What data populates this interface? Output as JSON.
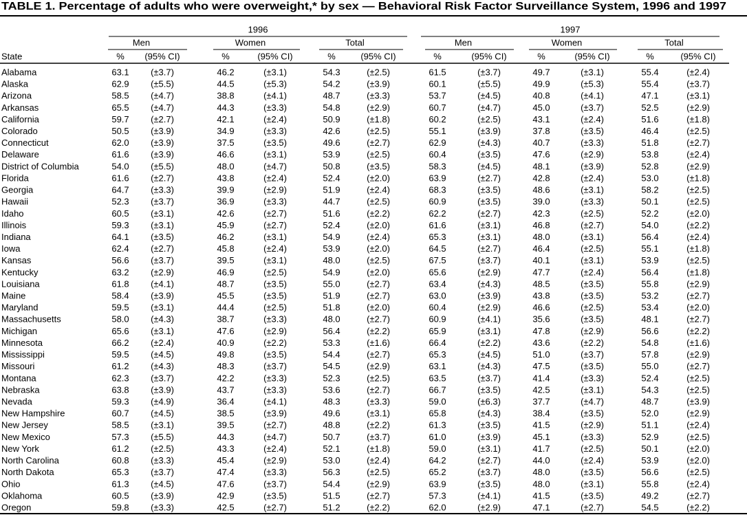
{
  "title": "TABLE 1. Percentage of adults who were overweight,* by sex — Behavioral Risk Factor Surveillance System, 1996 and 1997",
  "years": [
    "1996",
    "1997"
  ],
  "groups": [
    "Men",
    "Women",
    "Total"
  ],
  "columns": {
    "state": "State",
    "pct": "%",
    "ci": "(95% CI)"
  },
  "rows": [
    [
      "Alabama",
      "63.1",
      "(±3.7)",
      "46.2",
      "(±3.1)",
      "54.3",
      "(±2.5)",
      "61.5",
      "(±3.7)",
      "49.7",
      "(±3.1)",
      "55.4",
      "(±2.4)"
    ],
    [
      "Alaska",
      "62.9",
      "(±5.5)",
      "44.5",
      "(±5.3)",
      "54.2",
      "(±3.9)",
      "60.1",
      "(±5.5)",
      "49.9",
      "(±5.3)",
      "55.4",
      "(±3.7)"
    ],
    [
      "Arizona",
      "58.5",
      "(±4.7)",
      "38.8",
      "(±4.1)",
      "48.7",
      "(±3.3)",
      "53.7",
      "(±4.5)",
      "40.8",
      "(±4.1)",
      "47.1",
      "(±3.1)"
    ],
    [
      "Arkansas",
      "65.5",
      "(±4.7)",
      "44.3",
      "(±3.3)",
      "54.8",
      "(±2.9)",
      "60.7",
      "(±4.7)",
      "45.0",
      "(±3.7)",
      "52.5",
      "(±2.9)"
    ],
    [
      "California",
      "59.7",
      "(±2.7)",
      "42.1",
      "(±2.4)",
      "50.9",
      "(±1.8)",
      "60.2",
      "(±2.5)",
      "43.1",
      "(±2.4)",
      "51.6",
      "(±1.8)"
    ],
    [
      "Colorado",
      "50.5",
      "(±3.9)",
      "34.9",
      "(±3.3)",
      "42.6",
      "(±2.5)",
      "55.1",
      "(±3.9)",
      "37.8",
      "(±3.5)",
      "46.4",
      "(±2.5)"
    ],
    [
      "Connecticut",
      "62.0",
      "(±3.9)",
      "37.5",
      "(±3.5)",
      "49.6",
      "(±2.7)",
      "62.9",
      "(±4.3)",
      "40.7",
      "(±3.3)",
      "51.8",
      "(±2.7)"
    ],
    [
      "Delaware",
      "61.6",
      "(±3.9)",
      "46.6",
      "(±3.1)",
      "53.9",
      "(±2.5)",
      "60.4",
      "(±3.5)",
      "47.6",
      "(±2.9)",
      "53.8",
      "(±2.4)"
    ],
    [
      "District of Columbia",
      "54.0",
      "(±5.5)",
      "48.0",
      "(±4.7)",
      "50.8",
      "(±3.5)",
      "58.3",
      "(±4.5)",
      "48.1",
      "(±3.9)",
      "52.8",
      "(±2.9)"
    ],
    [
      "Florida",
      "61.6",
      "(±2.7)",
      "43.8",
      "(±2.4)",
      "52.4",
      "(±2.0)",
      "63.9",
      "(±2.7)",
      "42.8",
      "(±2.4)",
      "53.0",
      "(±1.8)"
    ],
    [
      "Georgia",
      "64.7",
      "(±3.3)",
      "39.9",
      "(±2.9)",
      "51.9",
      "(±2.4)",
      "68.3",
      "(±3.5)",
      "48.6",
      "(±3.1)",
      "58.2",
      "(±2.5)"
    ],
    [
      "Hawaii",
      "52.3",
      "(±3.7)",
      "36.9",
      "(±3.3)",
      "44.7",
      "(±2.5)",
      "60.9",
      "(±3.5)",
      "39.0",
      "(±3.3)",
      "50.1",
      "(±2.5)"
    ],
    [
      "Idaho",
      "60.5",
      "(±3.1)",
      "42.6",
      "(±2.7)",
      "51.6",
      "(±2.2)",
      "62.2",
      "(±2.7)",
      "42.3",
      "(±2.5)",
      "52.2",
      "(±2.0)"
    ],
    [
      "Illinois",
      "59.3",
      "(±3.1)",
      "45.9",
      "(±2.7)",
      "52.4",
      "(±2.0)",
      "61.6",
      "(±3.1)",
      "46.8",
      "(±2.7)",
      "54.0",
      "(±2.2)"
    ],
    [
      "Indiana",
      "64.1",
      "(±3.5)",
      "46.2",
      "(±3.1)",
      "54.9",
      "(±2.4)",
      "65.3",
      "(±3.1)",
      "48.0",
      "(±3.1)",
      "56.4",
      "(±2.4)"
    ],
    [
      "Iowa",
      "62.4",
      "(±2.7)",
      "45.8",
      "(±2.4)",
      "53.9",
      "(±2.0)",
      "64.5",
      "(±2.7)",
      "46.4",
      "(±2.5)",
      "55.1",
      "(±1.8)"
    ],
    [
      "Kansas",
      "56.6",
      "(±3.7)",
      "39.5",
      "(±3.1)",
      "48.0",
      "(±2.5)",
      "67.5",
      "(±3.7)",
      "40.1",
      "(±3.1)",
      "53.9",
      "(±2.5)"
    ],
    [
      "Kentucky",
      "63.2",
      "(±2.9)",
      "46.9",
      "(±2.5)",
      "54.9",
      "(±2.0)",
      "65.6",
      "(±2.9)",
      "47.7",
      "(±2.4)",
      "56.4",
      "(±1.8)"
    ],
    [
      "Louisiana",
      "61.8",
      "(±4.1)",
      "48.7",
      "(±3.5)",
      "55.0",
      "(±2.7)",
      "63.4",
      "(±4.3)",
      "48.5",
      "(±3.5)",
      "55.8",
      "(±2.9)"
    ],
    [
      "Maine",
      "58.4",
      "(±3.9)",
      "45.5",
      "(±3.5)",
      "51.9",
      "(±2.7)",
      "63.0",
      "(±3.9)",
      "43.8",
      "(±3.5)",
      "53.2",
      "(±2.7)"
    ],
    [
      "Maryland",
      "59.5",
      "(±3.1)",
      "44.4",
      "(±2.5)",
      "51.8",
      "(±2.0)",
      "60.4",
      "(±2.9)",
      "46.6",
      "(±2.5)",
      "53.4",
      "(±2.0)"
    ],
    [
      "Massachusetts",
      "58.0",
      "(±4.3)",
      "38.7",
      "(±3.3)",
      "48.0",
      "(±2.7)",
      "60.9",
      "(±4.1)",
      "35.6",
      "(±3.5)",
      "48.1",
      "(±2.7)"
    ],
    [
      "Michigan",
      "65.6",
      "(±3.1)",
      "47.6",
      "(±2.9)",
      "56.4",
      "(±2.2)",
      "65.9",
      "(±3.1)",
      "47.8",
      "(±2.9)",
      "56.6",
      "(±2.2)"
    ],
    [
      "Minnesota",
      "66.2",
      "(±2.4)",
      "40.9",
      "(±2.2)",
      "53.3",
      "(±1.6)",
      "66.4",
      "(±2.2)",
      "43.6",
      "(±2.2)",
      "54.8",
      "(±1.6)"
    ],
    [
      "Mississippi",
      "59.5",
      "(±4.5)",
      "49.8",
      "(±3.5)",
      "54.4",
      "(±2.7)",
      "65.3",
      "(±4.5)",
      "51.0",
      "(±3.7)",
      "57.8",
      "(±2.9)"
    ],
    [
      "Missouri",
      "61.2",
      "(±4.3)",
      "48.3",
      "(±3.7)",
      "54.5",
      "(±2.9)",
      "63.1",
      "(±4.3)",
      "47.5",
      "(±3.5)",
      "55.0",
      "(±2.7)"
    ],
    [
      "Montana",
      "62.3",
      "(±3.7)",
      "42.2",
      "(±3.3)",
      "52.3",
      "(±2.5)",
      "63.5",
      "(±3.7)",
      "41.4",
      "(±3.3)",
      "52.4",
      "(±2.5)"
    ],
    [
      "Nebraska",
      "63.8",
      "(±3.9)",
      "43.7",
      "(±3.3)",
      "53.6",
      "(±2.7)",
      "66.7",
      "(±3.5)",
      "42.5",
      "(±3.1)",
      "54.3",
      "(±2.5)"
    ],
    [
      "Nevada",
      "59.3",
      "(±4.9)",
      "36.4",
      "(±4.1)",
      "48.3",
      "(±3.3)",
      "59.0",
      "(±6.3)",
      "37.7",
      "(±4.7)",
      "48.7",
      "(±3.9)"
    ],
    [
      "New Hampshire",
      "60.7",
      "(±4.5)",
      "38.5",
      "(±3.9)",
      "49.6",
      "(±3.1)",
      "65.8",
      "(±4.3)",
      "38.4",
      "(±3.5)",
      "52.0",
      "(±2.9)"
    ],
    [
      "New Jersey",
      "58.5",
      "(±3.1)",
      "39.5",
      "(±2.7)",
      "48.8",
      "(±2.2)",
      "61.3",
      "(±3.5)",
      "41.5",
      "(±2.9)",
      "51.1",
      "(±2.4)"
    ],
    [
      "New Mexico",
      "57.3",
      "(±5.5)",
      "44.3",
      "(±4.7)",
      "50.7",
      "(±3.7)",
      "61.0",
      "(±3.9)",
      "45.1",
      "(±3.3)",
      "52.9",
      "(±2.5)"
    ],
    [
      "New York",
      "61.2",
      "(±2.5)",
      "43.3",
      "(±2.4)",
      "52.1",
      "(±1.8)",
      "59.0",
      "(±3.1)",
      "41.7",
      "(±2.5)",
      "50.1",
      "(±2.0)"
    ],
    [
      "North Carolina",
      "60.8",
      "(±3.3)",
      "45.4",
      "(±2.9)",
      "53.0",
      "(±2.4)",
      "64.2",
      "(±2.7)",
      "44.0",
      "(±2.4)",
      "53.9",
      "(±2.0)"
    ],
    [
      "North Dakota",
      "65.3",
      "(±3.7)",
      "47.4",
      "(±3.3)",
      "56.3",
      "(±2.5)",
      "65.2",
      "(±3.7)",
      "48.0",
      "(±3.5)",
      "56.6",
      "(±2.5)"
    ],
    [
      "Ohio",
      "61.3",
      "(±4.5)",
      "47.6",
      "(±3.7)",
      "54.4",
      "(±2.9)",
      "63.9",
      "(±3.5)",
      "48.0",
      "(±3.1)",
      "55.8",
      "(±2.4)"
    ],
    [
      "Oklahoma",
      "60.5",
      "(±3.9)",
      "42.9",
      "(±3.5)",
      "51.5",
      "(±2.7)",
      "57.3",
      "(±4.1)",
      "41.5",
      "(±3.5)",
      "49.2",
      "(±2.7)"
    ],
    [
      "Oregon",
      "59.8",
      "(±3.3)",
      "42.5",
      "(±2.7)",
      "51.2",
      "(±2.2)",
      "62.0",
      "(±2.9)",
      "47.1",
      "(±2.7)",
      "54.5",
      "(±2.2)"
    ]
  ]
}
